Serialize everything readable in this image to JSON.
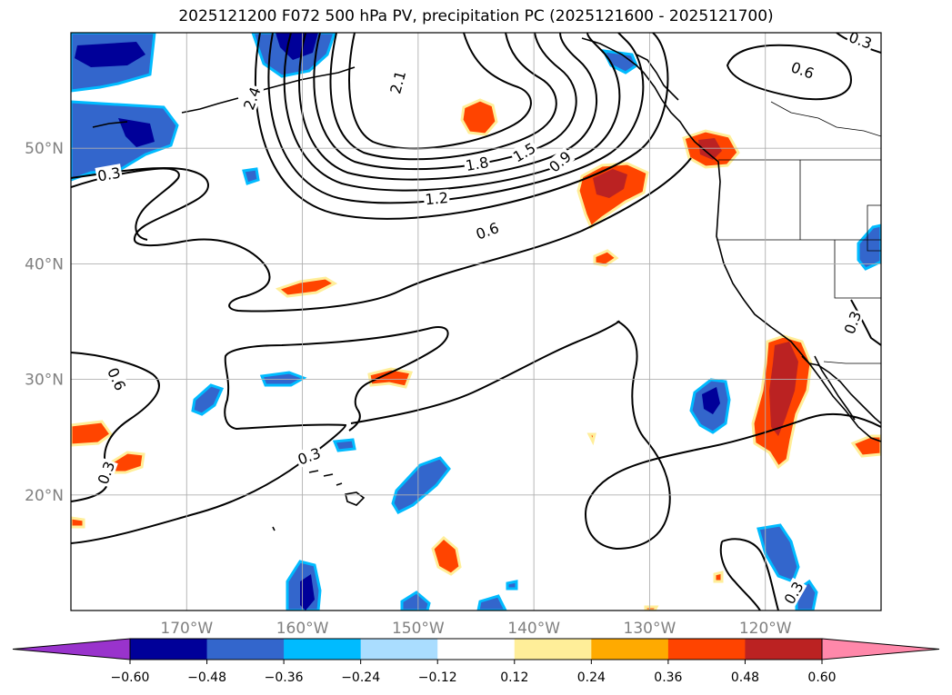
{
  "title": "2025121200 F072 500 hPa PV, precipitation PC (2025121600 - 2025121700)",
  "map": {
    "lon_range": [
      -180,
      -110
    ],
    "lat_range": [
      10,
      60
    ],
    "lon_ticks": [
      {
        "value": -170,
        "label": "170°W"
      },
      {
        "value": -160,
        "label": "160°W"
      },
      {
        "value": -150,
        "label": "150°W"
      },
      {
        "value": -140,
        "label": "140°W"
      },
      {
        "value": -130,
        "label": "130°W"
      },
      {
        "value": -120,
        "label": "120°W"
      }
    ],
    "lat_ticks": [
      {
        "value": 20,
        "label": "20°N"
      },
      {
        "value": 30,
        "label": "30°N"
      },
      {
        "value": 40,
        "label": "40°N"
      },
      {
        "value": 50,
        "label": "50°N"
      }
    ],
    "gridlines": true,
    "contour_labels": [
      {
        "text": "2.4",
        "lon": -164.3,
        "lat": 54.3,
        "rot": -70
      },
      {
        "text": "2.1",
        "lon": -151.7,
        "lat": 55.7,
        "rot": -75
      },
      {
        "text": "1.8",
        "lon": -144.9,
        "lat": 48.6,
        "rot": -10
      },
      {
        "text": "1.5",
        "lon": -140.8,
        "lat": 49.6,
        "rot": -30
      },
      {
        "text": "0.9",
        "lon": -137.7,
        "lat": 48.8,
        "rot": -40
      },
      {
        "text": "1.2",
        "lon": -148.4,
        "lat": 45.6,
        "rot": -5
      },
      {
        "text": "0.6",
        "lon": -144.0,
        "lat": 42.8,
        "rot": -20
      },
      {
        "text": "0.6",
        "lon": -116.8,
        "lat": 56.7,
        "rot": 20
      },
      {
        "text": "0.3",
        "lon": -176.7,
        "lat": 47.7,
        "rot": -10
      },
      {
        "text": "0.3",
        "lon": -159.4,
        "lat": 23.3,
        "rot": -20
      },
      {
        "text": "0.3",
        "lon": -112.4,
        "lat": 34.9,
        "rot": -70
      },
      {
        "text": "0.3",
        "lon": -117.5,
        "lat": 11.5,
        "rot": -60
      },
      {
        "text": "0.3",
        "lon": -176.9,
        "lat": 21.9,
        "rot": -70
      },
      {
        "text": "0.6",
        "lon": -176.1,
        "lat": 30.0,
        "rot": 65
      },
      {
        "text": "0.3",
        "lon": -111.8,
        "lat": 59.3,
        "rot": 20
      }
    ]
  },
  "colorbar": {
    "tick_labels": [
      "−0.60",
      "−0.48",
      "−0.36",
      "−0.24",
      "−0.12",
      "0.12",
      "0.24",
      "0.36",
      "0.48",
      "0.60"
    ],
    "colors": [
      "#9933cc",
      "#000099",
      "#3366cc",
      "#00bbff",
      "#aaddff",
      "#ffffff",
      "#ffee99",
      "#ffaa00",
      "#ff4400",
      "#bb2222",
      "#ff88aa"
    ],
    "extend": "both"
  }
}
